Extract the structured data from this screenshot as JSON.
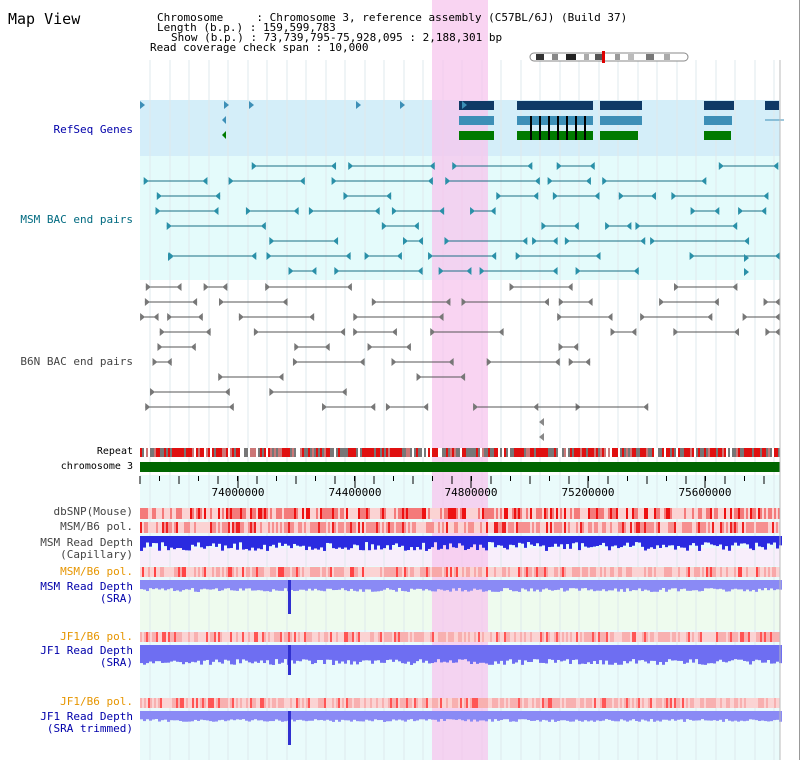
{
  "title": "Map View",
  "info": {
    "chromosome_line": "Chromosome     : Chromosome 3, reference assembly (C57BL/6J) (Build 37)",
    "length_line": "Length (b.p.) : 159,599,783",
    "show_line": "Show (b.p.) : 73,739,795-75,928,095 : 2,188,301 bp",
    "coverage_line": "Read coverage check span : 10,000"
  },
  "tracks": {
    "refseq": "RefSeq Genes",
    "msm_bac": "MSM BAC end pairs",
    "b6n_bac": "B6N BAC end pairs",
    "repeat": "Repeat",
    "chromosome": "chromosome 3",
    "dbsnp": "dbSNP(Mouse)",
    "msm_b6_pol_1": "MSM/B6 pol.",
    "msm_depth_cap_1": "MSM Read Depth",
    "msm_depth_cap_2": "(Capillary)",
    "msm_b6_pol_2": "MSM/B6 pol.",
    "msm_depth_sra_1": "MSM Read Depth",
    "msm_depth_sra_2": "(SRA)",
    "jf1_b6_pol_1": "JF1/B6 pol.",
    "jf1_depth_sra_1": "JF1 Read Depth",
    "jf1_depth_sra_2": "(SRA)",
    "jf1_b6_pol_2": "JF1/B6 pol.",
    "jf1_depth_trim_1": "JF1 Read Depth",
    "jf1_depth_trim_2": "(SRA trimmed)"
  },
  "axis": {
    "ticks": [
      "74000000",
      "74400000",
      "74800000",
      "75200000",
      "75600000"
    ]
  },
  "colors": {
    "label_black": "#000000",
    "label_blue": "#0000aa",
    "label_teal": "#006a80",
    "label_gray": "#444444",
    "label_orange": "#e69500",
    "highlight": "#f7c6ee",
    "refseq_bg": "#d4eef9",
    "bac_bg": "#e4fbfb",
    "gene_dark": "#0f3a66",
    "gene_mid": "#3d8fb7",
    "gene_green": "#007a00",
    "chrom_green": "#006600"
  }
}
